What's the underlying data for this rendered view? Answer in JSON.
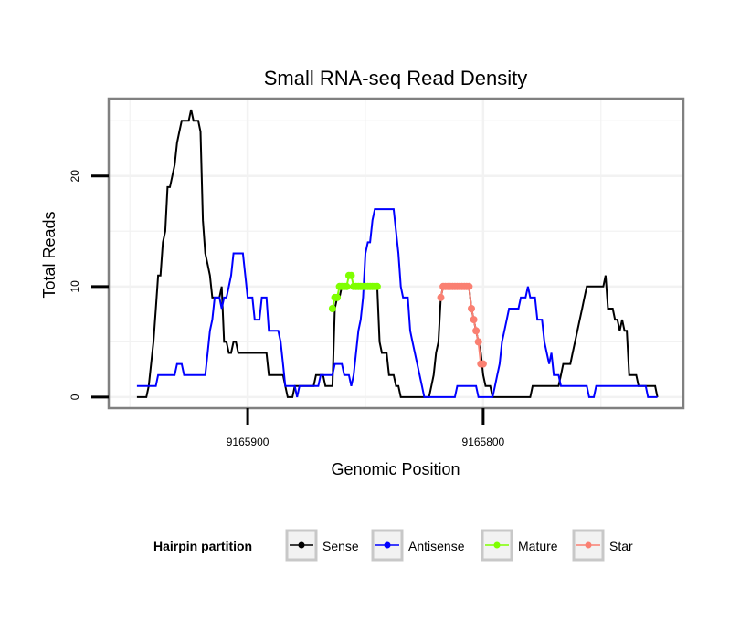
{
  "chart_data": {
    "type": "line",
    "title": "Small RNA-seq Read Density",
    "xlabel": "Genomic Position",
    "ylabel": "Total Reads",
    "x_reversed": true,
    "xlim": [
      9165959,
      9165715
    ],
    "ylim": [
      -1,
      27
    ],
    "x_ticks": [
      9165900,
      9165800
    ],
    "x_tick_labels": [
      "9165900",
      "9165800"
    ],
    "y_ticks": [
      0,
      10,
      20
    ],
    "y_tick_labels": [
      "0",
      "10",
      "20"
    ],
    "grid": true,
    "legend": {
      "title": "Hairpin partition",
      "placement": "bottom",
      "entries": [
        "Sense",
        "Antisense",
        "Mature",
        "Star"
      ]
    },
    "series": [
      {
        "name": "Sense",
        "color": "#000000",
        "mode": "line",
        "points": [
          [
            9165947,
            0
          ],
          [
            9165943,
            0
          ],
          [
            9165942,
            1
          ],
          [
            9165941,
            3
          ],
          [
            9165940,
            5
          ],
          [
            9165939,
            8
          ],
          [
            9165938,
            11
          ],
          [
            9165937,
            11
          ],
          [
            9165936,
            14
          ],
          [
            9165935,
            15
          ],
          [
            9165934,
            19
          ],
          [
            9165933,
            19
          ],
          [
            9165932,
            20
          ],
          [
            9165931,
            21
          ],
          [
            9165930,
            23
          ],
          [
            9165929,
            24
          ],
          [
            9165928,
            25
          ],
          [
            9165925,
            25
          ],
          [
            9165924,
            26
          ],
          [
            9165923,
            25
          ],
          [
            9165921,
            25
          ],
          [
            9165920,
            24
          ],
          [
            9165919,
            16
          ],
          [
            9165918,
            13
          ],
          [
            9165917,
            12
          ],
          [
            9165916,
            11
          ],
          [
            9165915,
            9
          ],
          [
            9165912,
            9
          ],
          [
            9165911,
            10
          ],
          [
            9165910,
            5
          ],
          [
            9165909,
            5
          ],
          [
            9165908,
            4
          ],
          [
            9165907,
            4
          ],
          [
            9165906,
            5
          ],
          [
            9165905,
            5
          ],
          [
            9165904,
            4
          ],
          [
            9165892,
            4
          ],
          [
            9165891,
            2
          ],
          [
            9165885,
            2
          ],
          [
            9165884,
            1
          ],
          [
            9165883,
            0
          ],
          [
            9165881,
            0
          ],
          [
            9165880,
            1
          ],
          [
            9165872,
            1
          ],
          [
            9165871,
            2
          ],
          [
            9165868,
            2
          ],
          [
            9165867,
            1
          ],
          [
            9165864,
            1
          ],
          [
            9165863,
            8
          ],
          [
            9165862,
            9
          ],
          [
            9165861,
            9
          ],
          [
            9165860,
            10
          ],
          [
            9165845,
            10
          ],
          [
            9165844,
            5
          ],
          [
            9165843,
            4
          ],
          [
            9165841,
            4
          ],
          [
            9165840,
            2
          ],
          [
            9165838,
            2
          ],
          [
            9165837,
            1
          ],
          [
            9165836,
            1
          ],
          [
            9165835,
            0
          ],
          [
            9165823,
            0
          ],
          [
            9165822,
            1
          ],
          [
            9165821,
            2
          ],
          [
            9165820,
            4
          ],
          [
            9165819,
            5
          ],
          [
            9165818,
            9
          ],
          [
            9165817,
            10
          ],
          [
            9165806,
            10
          ],
          [
            9165805,
            8
          ],
          [
            9165804,
            7
          ],
          [
            9165803,
            6
          ],
          [
            9165802,
            5
          ],
          [
            9165801,
            4
          ],
          [
            9165800,
            2
          ],
          [
            9165799,
            1
          ],
          [
            9165797,
            1
          ],
          [
            9165796,
            0
          ],
          [
            9165780,
            0
          ],
          [
            9165779,
            1
          ],
          [
            9165768,
            1
          ],
          [
            9165767,
            2
          ],
          [
            9165766,
            3
          ],
          [
            9165763,
            3
          ],
          [
            9165762,
            4
          ],
          [
            9165761,
            5
          ],
          [
            9165760,
            6
          ],
          [
            9165759,
            7
          ],
          [
            9165758,
            8
          ],
          [
            9165757,
            9
          ],
          [
            9165756,
            10
          ],
          [
            9165749,
            10
          ],
          [
            9165748,
            11
          ],
          [
            9165747,
            8
          ],
          [
            9165745,
            8
          ],
          [
            9165744,
            7
          ],
          [
            9165743,
            7
          ],
          [
            9165742,
            6
          ],
          [
            9165741,
            7
          ],
          [
            9165740,
            6
          ],
          [
            9165739,
            6
          ],
          [
            9165738,
            2
          ],
          [
            9165735,
            2
          ],
          [
            9165734,
            1
          ],
          [
            9165727,
            1
          ],
          [
            9165726,
            0
          ]
        ]
      },
      {
        "name": "Antisense",
        "color": "#0000ff",
        "mode": "line",
        "points": [
          [
            9165947,
            1
          ],
          [
            9165939,
            1
          ],
          [
            9165938,
            2
          ],
          [
            9165931,
            2
          ],
          [
            9165930,
            3
          ],
          [
            9165928,
            3
          ],
          [
            9165927,
            2
          ],
          [
            9165918,
            2
          ],
          [
            9165917,
            4
          ],
          [
            9165916,
            6
          ],
          [
            9165915,
            7
          ],
          [
            9165914,
            9
          ],
          [
            9165912,
            9
          ],
          [
            9165911,
            8
          ],
          [
            9165910,
            9
          ],
          [
            9165909,
            9
          ],
          [
            9165908,
            10
          ],
          [
            9165907,
            11
          ],
          [
            9165906,
            13
          ],
          [
            9165902,
            13
          ],
          [
            9165901,
            11
          ],
          [
            9165900,
            9
          ],
          [
            9165898,
            9
          ],
          [
            9165897,
            7
          ],
          [
            9165895,
            7
          ],
          [
            9165894,
            9
          ],
          [
            9165892,
            9
          ],
          [
            9165891,
            6
          ],
          [
            9165887,
            6
          ],
          [
            9165886,
            5
          ],
          [
            9165885,
            3
          ],
          [
            9165884,
            1
          ],
          [
            9165880,
            1
          ],
          [
            9165879,
            0
          ],
          [
            9165878,
            1
          ],
          [
            9165870,
            1
          ],
          [
            9165869,
            2
          ],
          [
            9165864,
            2
          ],
          [
            9165863,
            3
          ],
          [
            9165860,
            3
          ],
          [
            9165859,
            2
          ],
          [
            9165857,
            2
          ],
          [
            9165856,
            1
          ],
          [
            9165855,
            2
          ],
          [
            9165854,
            4
          ],
          [
            9165853,
            6
          ],
          [
            9165852,
            7
          ],
          [
            9165851,
            9
          ],
          [
            9165850,
            13
          ],
          [
            9165849,
            14
          ],
          [
            9165848,
            14
          ],
          [
            9165847,
            16
          ],
          [
            9165846,
            17
          ],
          [
            9165838,
            17
          ],
          [
            9165837,
            15
          ],
          [
            9165836,
            13
          ],
          [
            9165835,
            10
          ],
          [
            9165834,
            9
          ],
          [
            9165832,
            9
          ],
          [
            9165831,
            6
          ],
          [
            9165830,
            5
          ],
          [
            9165829,
            4
          ],
          [
            9165828,
            3
          ],
          [
            9165827,
            2
          ],
          [
            9165826,
            1
          ],
          [
            9165825,
            0
          ],
          [
            9165812,
            0
          ],
          [
            9165811,
            1
          ],
          [
            9165803,
            1
          ],
          [
            9165802,
            0
          ],
          [
            9165796,
            0
          ],
          [
            9165795,
            1
          ],
          [
            9165794,
            2
          ],
          [
            9165793,
            3
          ],
          [
            9165792,
            5
          ],
          [
            9165791,
            6
          ],
          [
            9165790,
            7
          ],
          [
            9165789,
            8
          ],
          [
            9165785,
            8
          ],
          [
            9165784,
            9
          ],
          [
            9165782,
            9
          ],
          [
            9165781,
            10
          ],
          [
            9165780,
            9
          ],
          [
            9165778,
            9
          ],
          [
            9165777,
            7
          ],
          [
            9165775,
            7
          ],
          [
            9165774,
            5
          ],
          [
            9165773,
            4
          ],
          [
            9165772,
            3
          ],
          [
            9165771,
            4
          ],
          [
            9165770,
            2
          ],
          [
            9165768,
            2
          ],
          [
            9165767,
            1
          ],
          [
            9165756,
            1
          ],
          [
            9165755,
            0
          ],
          [
            9165753,
            0
          ],
          [
            9165752,
            1
          ],
          [
            9165731,
            1
          ],
          [
            9165730,
            0
          ],
          [
            9165726,
            0
          ]
        ]
      },
      {
        "name": "Mature",
        "color": "#7fff00",
        "mode": "line+points",
        "points": [
          [
            9165864,
            8
          ],
          [
            9165863,
            9
          ],
          [
            9165862,
            9
          ],
          [
            9165861,
            10
          ],
          [
            9165860,
            10
          ],
          [
            9165859,
            10
          ],
          [
            9165858,
            10
          ],
          [
            9165857,
            11
          ],
          [
            9165856,
            11
          ],
          [
            9165855,
            10
          ],
          [
            9165854,
            10
          ],
          [
            9165853,
            10
          ],
          [
            9165852,
            10
          ],
          [
            9165851,
            10
          ],
          [
            9165850,
            10
          ],
          [
            9165849,
            10
          ],
          [
            9165848,
            10
          ],
          [
            9165847,
            10
          ],
          [
            9165846,
            10
          ],
          [
            9165845,
            10
          ]
        ]
      },
      {
        "name": "Star",
        "color": "#fa8072",
        "mode": "line+points",
        "points": [
          [
            9165818,
            9
          ],
          [
            9165817,
            10
          ],
          [
            9165816,
            10
          ],
          [
            9165815,
            10
          ],
          [
            9165814,
            10
          ],
          [
            9165813,
            10
          ],
          [
            9165812,
            10
          ],
          [
            9165811,
            10
          ],
          [
            9165810,
            10
          ],
          [
            9165809,
            10
          ],
          [
            9165808,
            10
          ],
          [
            9165807,
            10
          ],
          [
            9165806,
            10
          ],
          [
            9165805,
            8
          ],
          [
            9165804,
            7
          ],
          [
            9165803,
            6
          ],
          [
            9165802,
            5
          ],
          [
            9165801,
            3
          ],
          [
            9165800,
            3
          ]
        ]
      }
    ]
  }
}
